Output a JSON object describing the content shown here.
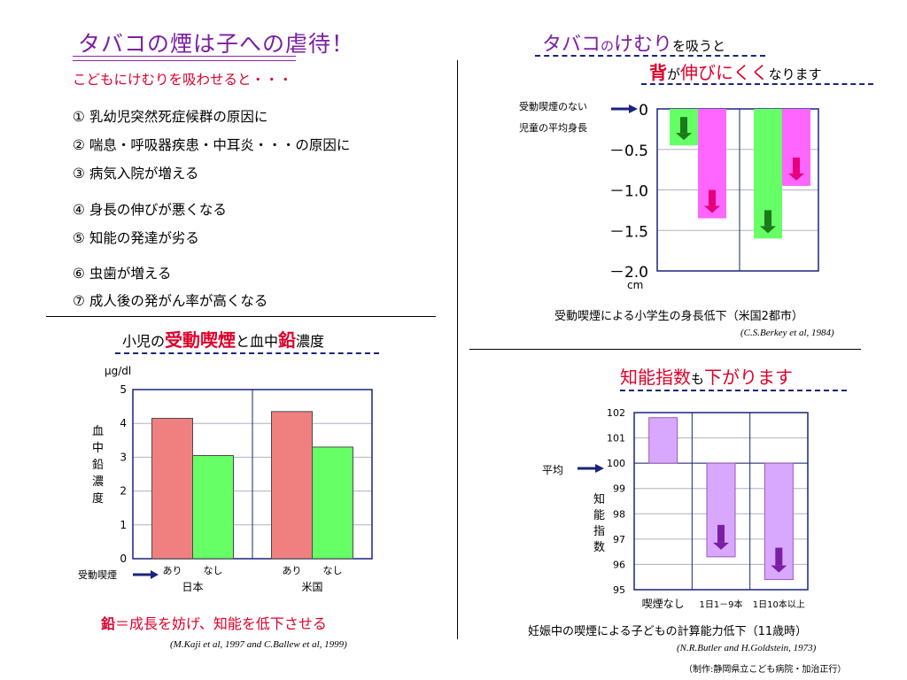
{
  "left_top": {
    "title": "タバコの煙は子への虐待！",
    "subtitle": "こどもにけむりを吸わせると・・・",
    "items": [
      "① 乳幼児突然死症候群の原因に",
      "② 喘息・呼吸器疾患・中耳炎・・・の原因に",
      "③ 病気入院が増える",
      "④ 身長の伸びが悪くなる",
      "⑤ 知能の発達が劣る",
      "⑥ 虫歯が増える",
      "⑦ 成人後の発がん率が高くなる"
    ]
  },
  "lead_panel": {
    "heading_pre": "小児の",
    "heading_red1": "受動喫煙",
    "heading_mid": "と血中",
    "heading_red2": "鉛",
    "heading_post": "濃度",
    "unit": "μg/dl",
    "ylabel": "血中鉛濃度",
    "exposure_label": "受動喫煙",
    "footer_red": "鉛",
    "footer_rest": "＝成長を妨げ、知能を低下させる",
    "citation": "(M.Kaji et al, 1997 and C.Ballew et al, 1999)"
  },
  "height_panel": {
    "heading_line1_a": "タバコ",
    "heading_line1_b": "の",
    "heading_line1_c": "けむり",
    "heading_line1_d": "を吸うと",
    "heading_line2_a": "背",
    "heading_line2_b": "が",
    "heading_line2_c": "伸びにくく",
    "heading_line2_d": "なります",
    "ref_label_line1": "受動喫煙のない",
    "ref_label_line2": "児童の平均身長",
    "unit": "cm",
    "caption": "受動喫煙による小学生の身長低下（米国2都市）",
    "citation": "(C.S.Berkey et al, 1984)"
  },
  "iq_panel": {
    "heading_a": "知能指数",
    "heading_b": "も",
    "heading_c": "下がります",
    "avg_label": "平均",
    "ylabel": "知能指数",
    "caption": "妊娠中の喫煙による子どもの計算能力低下（11歳時）",
    "citation": "(N.R.Butler and H.Goldstein, 1973)",
    "credit": "（制作:静岡県立こども病院・加治正行）"
  },
  "colors": {
    "title_purple": "#7b1fa2",
    "accent_red": "#e0002a",
    "bar_red": "#f08080",
    "bar_green": "#66ff66",
    "bar_magenta": "#ff66ff",
    "bar_lavender": "#d8a8ff",
    "arrow_green": "#1b7a1b",
    "arrow_pink": "#e6007a",
    "arrow_purple": "#7b1fa2",
    "arrow_navy": "#1a237e"
  },
  "chart_data": [
    {
      "id": "lead",
      "type": "bar",
      "groups": [
        "日本",
        "米国"
      ],
      "categories": [
        "あり",
        "なし"
      ],
      "series": [
        {
          "name": "あり",
          "values": [
            4.15,
            4.35
          ]
        },
        {
          "name": "なし",
          "values": [
            3.05,
            3.3
          ]
        }
      ],
      "yticks": [
        "0",
        "1",
        "2",
        "3",
        "4",
        "5"
      ],
      "ylim": [
        0,
        5
      ],
      "grid": true
    },
    {
      "id": "height",
      "type": "bar",
      "values": [
        -0.45,
        -1.35,
        -1.6,
        -0.95
      ],
      "colors": [
        "#66ff66",
        "#ff66ff",
        "#66ff66",
        "#ff66ff"
      ],
      "yticks": [
        "0",
        "－0.5",
        "－1.0",
        "－1.5",
        "－2.0"
      ],
      "ylim": [
        -2.0,
        0
      ],
      "grid": true
    },
    {
      "id": "iq",
      "type": "bar",
      "categories": [
        "喫煙なし",
        "1日1－9本",
        "1日10本以上"
      ],
      "values": [
        101.8,
        96.3,
        95.4
      ],
      "baseline": 100,
      "yticks": [
        "102",
        "101",
        "100",
        "99",
        "98",
        "97",
        "96",
        "95"
      ],
      "ylim": [
        95,
        102
      ],
      "grid": true
    }
  ]
}
